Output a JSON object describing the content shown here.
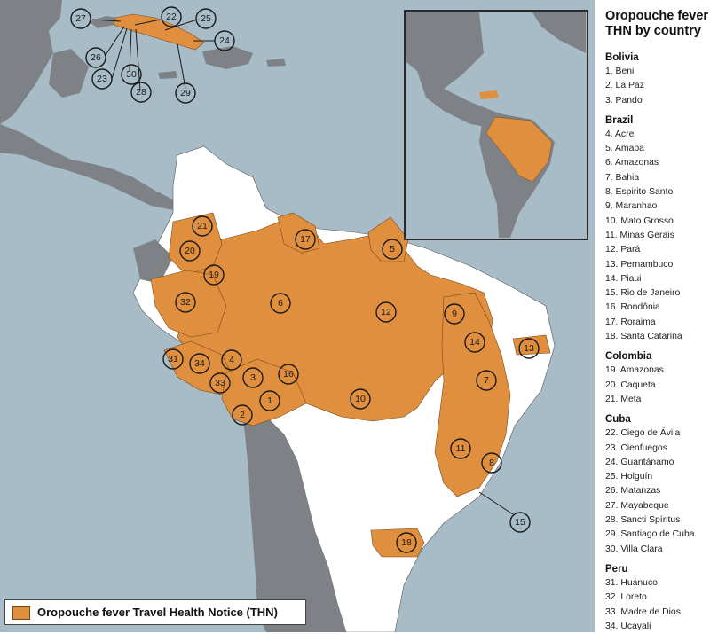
{
  "title": "Oropouche fever THN by country",
  "colors": {
    "ocean": "#a8bcc8",
    "land": "#7e8286",
    "white_land": "#ffffff",
    "thn_fill": "#e08f3f",
    "border": "#555555"
  },
  "legend": {
    "label": "Oropouche fever Travel Health Notice (THN)"
  },
  "countries": [
    {
      "name": "Bolivia",
      "regions": [
        "1. Beni",
        "2. La Paz",
        "3. Pando"
      ]
    },
    {
      "name": "Brazil",
      "regions": [
        "4. Acre",
        "5. Amapa",
        "6. Amazonas",
        "7. Bahia",
        "8. Espirito Santo",
        "9. Maranhao",
        "10. Mato Grosso",
        "11. Minas Gerais",
        "12. Pará",
        "13. Pernambuco",
        "14. Piaui",
        "15. Rio de Janeiro",
        "16. Rondônia",
        "17. Roraima",
        "18. Santa Catarina"
      ]
    },
    {
      "name": "Colombia",
      "regions": [
        "19. Amazonas",
        "20. Caqueta",
        "21. Meta"
      ]
    },
    {
      "name": "Cuba",
      "regions": [
        "22. Ciego de Ávila",
        "23. Cienfuegos",
        "24. Guantánamo",
        "25. Holguín",
        "26. Matanzas",
        "27. Mayabeque",
        "28. Sancti Spíritus",
        "29. Santiago de Cuba",
        "30. Villa Clara"
      ]
    },
    {
      "name": "Peru",
      "regions": [
        "31. Huánuco",
        "32. Loreto",
        "33. Madre de Dios",
        "34. Ucayali"
      ]
    }
  ],
  "markers": [
    "1",
    "2",
    "3",
    "4",
    "5",
    "6",
    "7",
    "8",
    "9",
    "10",
    "11",
    "12",
    "13",
    "14",
    "15",
    "16",
    "17",
    "18",
    "19",
    "20",
    "21",
    "22",
    "23",
    "24",
    "25",
    "26",
    "27",
    "28",
    "29",
    "30",
    "31",
    "32",
    "33",
    "34"
  ]
}
